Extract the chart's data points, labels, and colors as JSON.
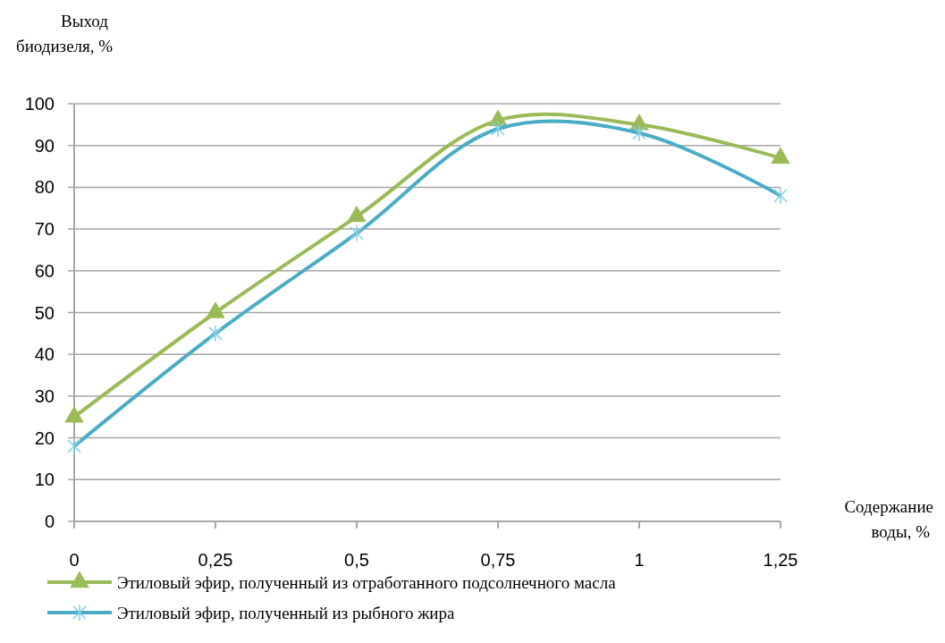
{
  "chart_data": {
    "type": "line",
    "xlabel": "Содержание воды, %",
    "ylabel": "Выход биодизеля, %",
    "x": [
      0,
      0.25,
      0.5,
      0.75,
      1,
      1.25
    ],
    "series": [
      {
        "name": "Этиловый эфир, полученный из отработанного подсолнечного масла",
        "color": "#9bbb59",
        "marker": "triangle",
        "values": [
          25,
          50,
          73,
          96,
          95,
          87
        ]
      },
      {
        "name": "Этиловый эфир, полученный из рыбного жира",
        "color": "#4bacc6",
        "marker": "cross",
        "values": [
          18,
          45,
          69,
          94,
          93,
          78
        ]
      }
    ],
    "xlim": [
      0,
      1.25
    ],
    "xticks": [
      0,
      {
        "value": 0.25,
        "label": "0,25"
      },
      {
        "value": 0.5,
        "label": "0,5"
      },
      {
        "value": 0.75,
        "label": "0,75"
      },
      1,
      {
        "value": 1.25,
        "label": "1,25"
      }
    ],
    "ylim": [
      0,
      100
    ],
    "yticks": [
      0,
      10,
      20,
      30,
      40,
      50,
      60,
      70,
      80,
      90,
      100
    ],
    "grid": "y",
    "legend": "bottom",
    "line_style": "solid"
  }
}
